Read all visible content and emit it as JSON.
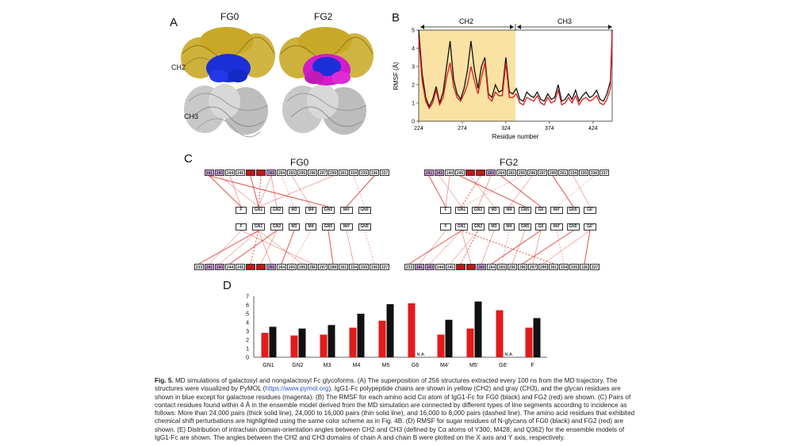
{
  "panels": {
    "a": {
      "label": "A",
      "fg0": "FG0",
      "fg2": "FG2",
      "ch2": "CH2",
      "ch3": "CH3"
    },
    "b": {
      "label": "B",
      "ch2": "CH2",
      "ch3": "CH3"
    },
    "c": {
      "label": "C",
      "fg0": "FG0",
      "fg2": "FG2"
    },
    "d": {
      "label": "D"
    }
  },
  "colors": {
    "yellow": "#f9e2a3",
    "red": "#e21b1b",
    "black": "#111111",
    "pink": "#d9a8e8",
    "darkred": "#c01818",
    "blue": "#1a2fd8",
    "magenta": "#d21cc9",
    "gold": "#c9a828"
  },
  "residues_top": [
    "241",
    "243",
    "244",
    "245",
    "",
    "",
    "260",
    "264",
    "265",
    "295",
    "296",
    "297",
    "299",
    "301",
    "334",
    "335",
    "336",
    "337"
  ],
  "residues_bottom": [
    "233",
    "241",
    "243",
    "244",
    "245",
    "",
    "",
    "260",
    "264",
    "265",
    "295",
    "296",
    "297",
    "299",
    "301",
    "334",
    "335",
    "336",
    "337"
  ],
  "glycans_fg0": [
    "F",
    "GN1",
    "GN2",
    "M3",
    "M4",
    "GN5",
    "M4'",
    "GN5'"
  ],
  "glycans_fg2": [
    "F",
    "GN1",
    "GN2",
    "M3",
    "M4",
    "GN5",
    "G6",
    "M4'",
    "GN5'",
    "G6'"
  ],
  "rmsf_chart": {
    "type": "line",
    "xlabel": "Residue number",
    "ylabel": "RMSF (Å)",
    "xlim": [
      224,
      446
    ],
    "ylim": [
      0,
      5
    ],
    "xticks": [
      224,
      274,
      324,
      374,
      424
    ],
    "yticks": [
      0,
      1,
      2,
      3,
      4,
      5
    ],
    "series": [
      {
        "color": "#111111",
        "x": [
          224,
          228,
          232,
          236,
          240,
          244,
          248,
          252,
          256,
          260,
          264,
          268,
          272,
          276,
          280,
          284,
          288,
          292,
          296,
          300,
          304,
          308,
          312,
          316,
          320,
          324,
          328,
          332,
          336,
          340,
          344,
          348,
          352,
          356,
          360,
          364,
          368,
          372,
          376,
          380,
          384,
          388,
          392,
          396,
          400,
          404,
          408,
          412,
          416,
          420,
          424,
          428,
          432,
          436,
          440,
          444,
          446
        ],
        "y": [
          5,
          2.6,
          1.3,
          0.8,
          1.2,
          1.9,
          1.0,
          1.6,
          3.0,
          4.4,
          2.3,
          1.5,
          1.2,
          1.8,
          2.8,
          4.4,
          2.8,
          1.8,
          3.0,
          3.5,
          1.5,
          1.3,
          2.0,
          1.6,
          1.7,
          3.5,
          1.6,
          1.5,
          1.8,
          1.2,
          1.1,
          1.6,
          1.4,
          1.3,
          1.6,
          1.2,
          1.1,
          1.5,
          1.2,
          1.3,
          2.0,
          1.1,
          1.2,
          1.5,
          1.2,
          1.7,
          1.1,
          1.4,
          1.6,
          1.3,
          1.4,
          1.7,
          1.2,
          1.1,
          1.5,
          2.2,
          5
        ]
      },
      {
        "color": "#e21b1b",
        "x": [
          224,
          228,
          232,
          236,
          240,
          244,
          248,
          252,
          256,
          260,
          264,
          268,
          272,
          276,
          280,
          284,
          288,
          292,
          296,
          300,
          304,
          308,
          312,
          316,
          320,
          324,
          328,
          332,
          336,
          340,
          344,
          348,
          352,
          356,
          360,
          364,
          368,
          372,
          376,
          380,
          384,
          388,
          392,
          396,
          400,
          404,
          408,
          412,
          416,
          420,
          424,
          428,
          432,
          436,
          440,
          444,
          446
        ],
        "y": [
          4.6,
          2.2,
          1.1,
          0.7,
          1.0,
          1.7,
          0.9,
          1.3,
          2.4,
          3.2,
          1.9,
          1.3,
          1.1,
          1.5,
          2.0,
          3.0,
          2.2,
          1.5,
          2.4,
          3.2,
          1.3,
          1.1,
          1.6,
          1.4,
          1.4,
          3.2,
          1.3,
          1.3,
          1.5,
          1.0,
          0.9,
          1.3,
          1.2,
          1.1,
          1.4,
          1.0,
          0.9,
          1.3,
          1.0,
          1.1,
          1.7,
          0.9,
          1.0,
          1.3,
          1.0,
          1.4,
          0.9,
          1.2,
          1.3,
          1.1,
          1.2,
          1.4,
          1.0,
          0.9,
          1.2,
          1.8,
          4.9
        ]
      }
    ]
  },
  "chart_data": {
    "type": "bar",
    "categories": [
      "GN1",
      "GN2",
      "M3",
      "M4",
      "M5",
      "G6",
      "M4'",
      "M5'",
      "G6'",
      "F"
    ],
    "ylim": [
      0,
      7
    ],
    "yticks": [
      0,
      1,
      2,
      3,
      4,
      5,
      6,
      7
    ],
    "series": [
      {
        "color": "#e21b1b",
        "values": [
          2.8,
          2.5,
          2.6,
          3.4,
          4.2,
          6.2,
          2.6,
          3.3,
          5.4,
          3.4
        ]
      },
      {
        "color": "#111111",
        "values": [
          3.5,
          3.3,
          3.7,
          5.0,
          6.1,
          null,
          4.3,
          6.4,
          null,
          4.5
        ]
      }
    ],
    "annotations": [
      "N.A.",
      "N.A."
    ]
  },
  "caption": {
    "fig": "Fig. 5.",
    "text1": "MD simulations of galactosyl and nongalactosyl Fc glycoforms. (A) The superposition of 256 structures extracted every 100 ns from the MD trajectory. The structures were visualized by PyMOL (",
    "link": "https://www.pymol.org",
    "text2": "). IgG1-Fc polypeptide chains are shown in yellow (CH2) and gray (CH3), and the glycan residues are shown in blue except for galactose residues (magenta). (B) The RMSF for each amino acid Cα atom of IgG1-Fc for FG0 (black) and FG2 (red) are shown. (C) Pairs of contact residues found within 4 Å in the ensemble model derived from the MD simulation are connected by different types of line segments according to incidence as follows: More than 24,000 pairs (thick solid line), 24,000 to 16,000 pairs (thin solid line), and 16,000 to 8,000 pairs (dashed line). The amino acid residues that exhibited chemical shift perturbations are highlighted using the same color scheme as in Fig. 4B. (D) RMSF for sugar residues of N-glycans of FG0 (black) and FG2 (red) are shown. (E) Distribution of intrachain domain-orientation angles between CH2 and CH3 (defined by Cα atoms of Y300, M428, and Q362) for the ensemble models of IgG1-Fc are shown. The angles between the CH2 and CH3 domains of chain A and chain B were plotted on the X axis and Y axis, respectively."
  }
}
